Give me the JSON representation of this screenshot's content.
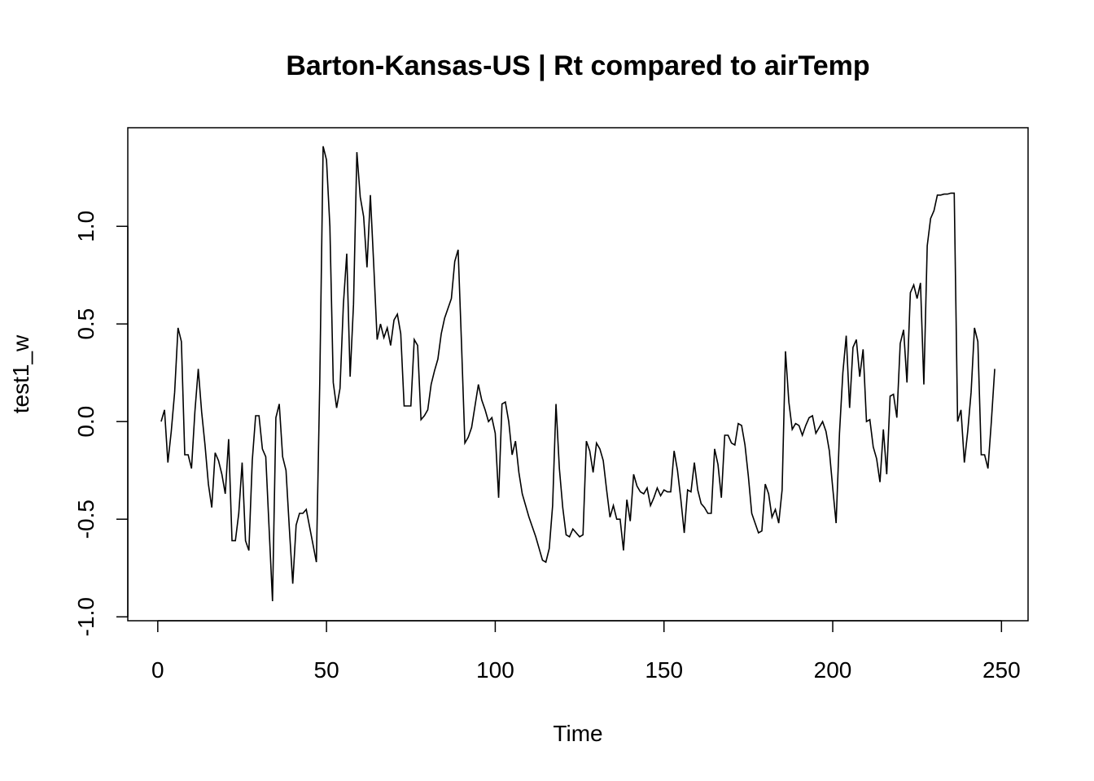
{
  "chart_data": {
    "type": "line",
    "title": "Barton-Kansas-US | Rt compared to airTemp",
    "x_label": "Time",
    "y_label": "test1_w",
    "x": [
      1,
      2,
      3,
      4,
      5,
      6,
      7,
      8,
      9,
      10,
      11,
      12,
      13,
      14,
      15,
      16,
      17,
      18,
      19,
      20,
      21,
      22,
      23,
      24,
      25,
      26,
      27,
      28,
      29,
      30,
      31,
      32,
      33,
      34,
      35,
      36,
      37,
      38,
      39,
      40,
      41,
      42,
      43,
      44,
      45,
      46,
      47,
      48,
      49,
      50,
      51,
      52,
      53,
      54,
      55,
      56,
      57,
      58,
      59,
      60,
      61,
      62,
      63,
      64,
      65,
      66,
      67,
      68,
      69,
      70,
      71,
      72,
      73,
      74,
      75,
      76,
      77,
      78,
      79,
      80,
      81,
      82,
      83,
      84,
      85,
      86,
      87,
      88,
      89,
      90,
      91,
      92,
      93,
      94,
      95,
      96,
      97,
      98,
      99,
      100,
      101,
      102,
      103,
      104,
      105,
      106,
      107,
      108,
      109,
      110,
      111,
      112,
      113,
      114,
      115,
      116,
      117,
      118,
      119,
      120,
      121,
      122,
      123,
      124,
      125,
      126,
      127,
      128,
      129,
      130,
      131,
      132,
      133,
      134,
      135,
      136,
      137,
      138,
      139,
      140,
      141,
      142,
      143,
      144,
      145,
      146,
      147,
      148,
      149,
      150,
      151,
      152,
      153,
      154,
      155,
      156,
      157,
      158,
      159,
      160,
      161,
      162,
      163,
      164,
      165,
      166,
      167,
      168,
      169,
      170,
      171,
      172,
      173,
      174,
      175,
      176,
      177,
      178,
      179,
      180,
      181,
      182,
      183,
      184,
      185,
      186,
      187,
      188,
      189,
      190,
      191,
      192,
      193,
      194,
      195,
      196,
      197,
      198,
      199,
      200,
      201,
      202,
      203,
      204,
      205,
      206,
      207,
      208,
      209,
      210,
      211,
      212,
      213,
      214,
      215,
      216,
      217,
      218,
      219,
      220,
      221,
      222,
      223,
      224,
      225,
      226,
      227,
      228,
      229,
      230,
      231,
      232,
      233,
      234,
      235,
      236,
      237,
      238,
      239,
      240,
      241,
      242,
      243,
      244,
      245,
      246,
      247,
      248
    ],
    "series": [
      {
        "color": "#000000",
        "values": [
          0,
          0.06,
          -0.21,
          -0.05,
          0.15,
          0.48,
          0.41,
          -0.17,
          -0.17,
          -0.24,
          0.05,
          0.27,
          0.05,
          -0.12,
          -0.32,
          -0.44,
          -0.16,
          -0.2,
          -0.27,
          -0.37,
          -0.09,
          -0.61,
          -0.61,
          -0.47,
          -0.21,
          -0.61,
          -0.66,
          -0.2,
          0.03,
          0.03,
          -0.14,
          -0.18,
          -0.55,
          -0.92,
          0.02,
          0.09,
          -0.18,
          -0.25,
          -0.55,
          -0.83,
          -0.53,
          -0.47,
          -0.47,
          -0.45,
          -0.54,
          -0.63,
          -0.72,
          0.2,
          1.41,
          1.34,
          1.0,
          0.2,
          0.07,
          0.17,
          0.6,
          0.86,
          0.23,
          0.6,
          1.38,
          1.15,
          1.05,
          0.79,
          1.16,
          0.8,
          0.42,
          0.5,
          0.43,
          0.48,
          0.39,
          0.52,
          0.55,
          0.45,
          0.08,
          0.08,
          0.08,
          0.42,
          0.39,
          0.01,
          0.03,
          0.06,
          0.19,
          0.26,
          0.32,
          0.45,
          0.53,
          0.58,
          0.63,
          0.82,
          0.88,
          0.4,
          -0.11,
          -0.08,
          -0.03,
          0.08,
          0.19,
          0.11,
          0.06,
          0,
          0.02,
          -0.06,
          -0.39,
          0.09,
          0.1,
          0,
          -0.17,
          -0.1,
          -0.26,
          -0.37,
          -0.43,
          -0.49,
          -0.54,
          -0.59,
          -0.65,
          -0.71,
          -0.72,
          -0.65,
          -0.43,
          0.09,
          -0.24,
          -0.44,
          -0.58,
          -0.59,
          -0.55,
          -0.57,
          -0.59,
          -0.58,
          -0.1,
          -0.15,
          -0.26,
          -0.11,
          -0.14,
          -0.2,
          -0.35,
          -0.49,
          -0.43,
          -0.5,
          -0.5,
          -0.66,
          -0.4,
          -0.51,
          -0.27,
          -0.33,
          -0.36,
          -0.37,
          -0.34,
          -0.43,
          -0.39,
          -0.34,
          -0.38,
          -0.35,
          -0.36,
          -0.36,
          -0.15,
          -0.25,
          -0.4,
          -0.57,
          -0.35,
          -0.36,
          -0.21,
          -0.35,
          -0.42,
          -0.44,
          -0.47,
          -0.47,
          -0.14,
          -0.22,
          -0.39,
          -0.07,
          -0.07,
          -0.11,
          -0.12,
          -0.01,
          -0.02,
          -0.12,
          -0.28,
          -0.47,
          -0.52,
          -0.57,
          -0.56,
          -0.32,
          -0.37,
          -0.49,
          -0.45,
          -0.52,
          -0.35,
          0.36,
          0.1,
          -0.04,
          -0.01,
          -0.02,
          -0.07,
          -0.02,
          0.02,
          0.03,
          -0.06,
          -0.03,
          0,
          -0.05,
          -0.15,
          -0.34,
          -0.52,
          -0.06,
          0.25,
          0.44,
          0.07,
          0.38,
          0.42,
          0.23,
          0.37,
          0,
          0.01,
          -0.13,
          -0.19,
          -0.31,
          -0.04,
          -0.27,
          0.13,
          0.14,
          0.02,
          0.4,
          0.47,
          0.2,
          0.66,
          0.7,
          0.63,
          0.71,
          0.19,
          0.9,
          1.04,
          1.08,
          1.16,
          1.16,
          1.165,
          1.165,
          1.17,
          1.17,
          0,
          0.06,
          -0.21,
          -0.05,
          0.15,
          0.48,
          0.41,
          -0.17,
          -0.17,
          -0.24,
          0,
          0.27
        ]
      }
    ],
    "xlim": [
      -8.88,
      257.88
    ],
    "ylim": [
      -1.02,
      1.505
    ],
    "xticks": [
      0,
      50,
      100,
      150,
      200,
      250
    ],
    "yticks": [
      {
        "value": -1,
        "label": "-1.0"
      },
      {
        "value": -0.5,
        "label": "-0.5"
      },
      {
        "value": 0,
        "label": "0.0"
      },
      {
        "value": 0.5,
        "label": "0.5"
      },
      {
        "value": 1,
        "label": "1.0"
      }
    ]
  }
}
